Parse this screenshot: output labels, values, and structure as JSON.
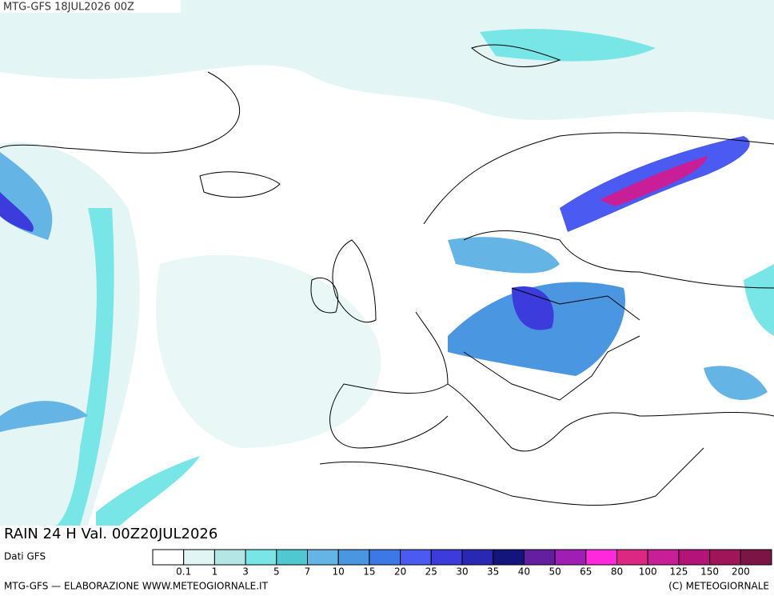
{
  "header": {
    "run": "MTG-GFS 18JUL2026 00Z"
  },
  "map": {
    "title": "RAIN 24 H Val. 00Z20JUL2026"
  },
  "legend": {
    "source": "Dati GFS",
    "colors": [
      "#ffffff",
      "#e1f5f5",
      "#b4e6e6",
      "#78e6e6",
      "#50c8d2",
      "#64b4e6",
      "#4b96e1",
      "#3c78e6",
      "#4b5af0",
      "#3c3cdc",
      "#2828b4",
      "#14147d",
      "#641ea0",
      "#a01eb4",
      "#ff28dc",
      "#dc2882",
      "#c81e96",
      "#b41478",
      "#a0145a",
      "#7d1446"
    ],
    "labels": [
      0.1,
      1,
      3,
      5,
      7,
      10,
      15,
      20,
      25,
      30,
      35,
      40,
      50,
      65,
      80,
      100,
      125,
      150,
      200
    ]
  },
  "footer": {
    "left": "MTG-GFS — ELABORAZIONE WWW.METEOGIORNALE.IT",
    "right": "(C) METEOGIORNALE"
  }
}
